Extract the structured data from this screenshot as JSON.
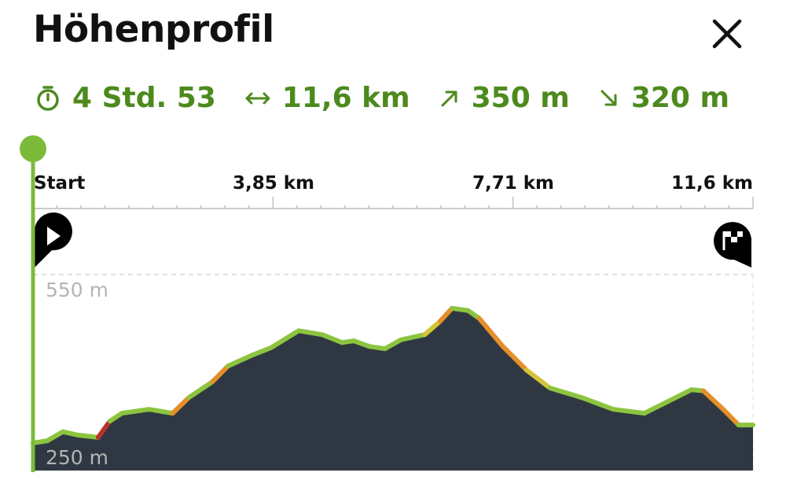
{
  "header": {
    "title": "Höhenprofil",
    "close_icon": "close-icon"
  },
  "stats": [
    {
      "icon": "stopwatch-icon",
      "value": "4 Std. 53"
    },
    {
      "icon": "horizontal-arrows-icon",
      "value": "11,6 km"
    },
    {
      "icon": "arrow-up-right-icon",
      "value": "350 m"
    },
    {
      "icon": "arrow-down-right-icon",
      "value": "320 m"
    }
  ],
  "colors": {
    "accent": "#4d8a1e",
    "line": "#8cc43f",
    "fill": "#2f3842",
    "steep1": "#d4c43a",
    "steep2": "#e58f2a",
    "steep3": "#b8322a"
  },
  "chart_data": {
    "type": "area",
    "xlabel": "",
    "ylabel": "",
    "x_ticks": [
      "Start",
      "3,85 km",
      "7,71 km",
      "11,6 km"
    ],
    "x_tick_values": [
      0,
      3.85,
      7.71,
      11.6
    ],
    "y_ticks": [
      "550 m",
      "250 m"
    ],
    "y_tick_values": [
      550,
      250
    ],
    "xlim": [
      0,
      11.6
    ],
    "ylim": [
      200,
      600
    ],
    "grid": true,
    "markers": [
      {
        "icon": "start-play-icon",
        "km": 0
      },
      {
        "icon": "finish-flag-icon",
        "km": 11.6
      }
    ],
    "cursor_km": 0,
    "x": [
      0,
      0.23,
      0.48,
      0.73,
      1.05,
      1.24,
      1.43,
      1.87,
      2.25,
      2.51,
      2.89,
      3.14,
      3.52,
      3.84,
      4.28,
      4.66,
      4.98,
      5.17,
      5.42,
      5.67,
      5.93,
      6.31,
      6.56,
      6.75,
      7.01,
      7.19,
      7.57,
      7.95,
      8.33,
      8.84,
      9.35,
      9.85,
      10.23,
      10.61,
      10.8,
      11.12,
      11.37,
      11.6
    ],
    "elevation": [
      250,
      254,
      270,
      264,
      260,
      289,
      303,
      310,
      303,
      331,
      359,
      387,
      406,
      420,
      450,
      443,
      429,
      432,
      422,
      418,
      434,
      443,
      467,
      490,
      486,
      472,
      422,
      380,
      348,
      331,
      310,
      303,
      324,
      345,
      343,
      310,
      282,
      282
    ]
  }
}
